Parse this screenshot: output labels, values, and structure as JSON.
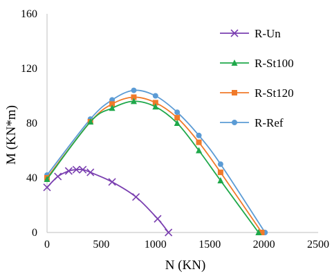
{
  "chart_data": {
    "type": "line",
    "xlabel": "N (KN)",
    "ylabel": "M (KN*m)",
    "xlim": [
      0,
      2500
    ],
    "ylim": [
      0,
      160
    ],
    "x_ticks": [
      "0",
      "500",
      "1000",
      "1500",
      "2000",
      "2500"
    ],
    "y_ticks": [
      "0",
      "40",
      "80",
      "120",
      "160"
    ],
    "grid": false,
    "legend_position": "right",
    "series": [
      {
        "name": "R-Un",
        "color": "#7a3fb0",
        "marker": "x",
        "x": [
          0,
          100,
          200,
          270,
          330,
          400,
          600,
          820,
          1020,
          1120
        ],
        "y": [
          33,
          41,
          45,
          46,
          46,
          44,
          37,
          26,
          10,
          0
        ]
      },
      {
        "name": "R-St100",
        "color": "#1fa84a",
        "marker": "triangle",
        "x": [
          0,
          400,
          600,
          800,
          1000,
          1200,
          1400,
          1600,
          1950
        ],
        "y": [
          39,
          81,
          91,
          96,
          92,
          80,
          60,
          38,
          0
        ]
      },
      {
        "name": "R-St120",
        "color": "#f07a2a",
        "marker": "square",
        "x": [
          0,
          400,
          600,
          800,
          1000,
          1200,
          1400,
          1600,
          1980
        ],
        "y": [
          40,
          81,
          94,
          99,
          95,
          84,
          66,
          44,
          0
        ]
      },
      {
        "name": "R-Ref",
        "color": "#5b9bd5",
        "marker": "circle",
        "x": [
          0,
          400,
          600,
          800,
          1000,
          1200,
          1400,
          1600,
          2010
        ],
        "y": [
          42,
          83,
          97,
          104,
          100,
          88,
          71,
          50,
          0
        ]
      }
    ]
  }
}
